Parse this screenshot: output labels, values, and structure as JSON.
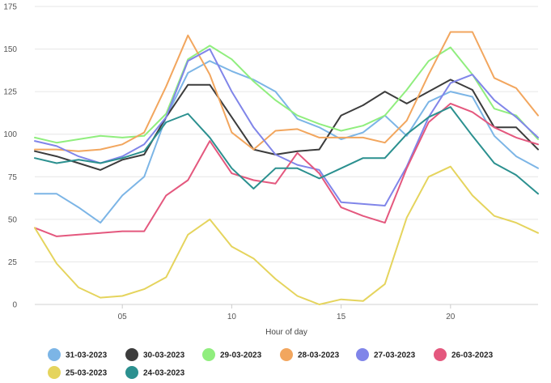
{
  "chart_data": {
    "type": "line",
    "xlabel": "Hour of day",
    "ylabel": "",
    "xlim": [
      1,
      24
    ],
    "ylim": [
      0,
      175
    ],
    "x_ticks": [
      5,
      10,
      15,
      20
    ],
    "x_tick_labels": [
      "05",
      "10",
      "15",
      "20"
    ],
    "y_ticks": [
      0,
      25,
      50,
      75,
      100,
      125,
      150,
      175
    ],
    "grid": "horizontal",
    "legend_position": "bottom",
    "x": [
      1,
      2,
      3,
      4,
      5,
      6,
      7,
      8,
      9,
      10,
      11,
      12,
      13,
      14,
      15,
      16,
      17,
      18,
      19,
      20,
      21,
      22,
      23,
      24
    ],
    "series": [
      {
        "name": "31-03-2023",
        "color": "#7cb5e6",
        "values": [
          65,
          65,
          57,
          48,
          64,
          75,
          110,
          136,
          143,
          137,
          132,
          125,
          109,
          104,
          97,
          101,
          111,
          99,
          119,
          125,
          122,
          99,
          87,
          80
        ]
      },
      {
        "name": "30-03-2023",
        "color": "#3c3c3c",
        "values": [
          90,
          87,
          83,
          79,
          85,
          88,
          110,
          129,
          129,
          110,
          91,
          88,
          90,
          91,
          111,
          117,
          125,
          118,
          125,
          132,
          126,
          104,
          104,
          91
        ]
      },
      {
        "name": "29-03-2023",
        "color": "#90ee7e",
        "values": [
          98,
          95,
          97,
          99,
          98,
          99,
          112,
          144,
          152,
          144,
          131,
          120,
          111,
          106,
          102,
          105,
          111,
          126,
          143,
          151,
          135,
          115,
          111,
          97
        ]
      },
      {
        "name": "28-03-2023",
        "color": "#f2a65e",
        "values": [
          91,
          91,
          90,
          91,
          94,
          101,
          128,
          158,
          135,
          101,
          91,
          102,
          103,
          98,
          98,
          98,
          95,
          108,
          135,
          160,
          160,
          133,
          127,
          111
        ]
      },
      {
        "name": "27-03-2023",
        "color": "#8085e9",
        "values": [
          96,
          93,
          87,
          83,
          87,
          94,
          110,
          143,
          150,
          125,
          104,
          88,
          82,
          79,
          60,
          59,
          58,
          81,
          110,
          130,
          135,
          120,
          110,
          98
        ]
      },
      {
        "name": "26-03-2023",
        "color": "#e4587e",
        "values": [
          45,
          40,
          41,
          42,
          43,
          43,
          64,
          73,
          96,
          77,
          73,
          71,
          89,
          77,
          57,
          52,
          48,
          80,
          107,
          118,
          113,
          104,
          98,
          94
        ]
      },
      {
        "name": "25-03-2023",
        "color": "#e5d45d",
        "values": [
          45,
          24,
          10,
          4,
          5,
          9,
          16,
          41,
          50,
          34,
          27,
          15,
          5,
          0,
          3,
          2,
          12,
          51,
          75,
          81,
          64,
          52,
          48,
          42
        ]
      },
      {
        "name": "24-03-2023",
        "color": "#2b908f",
        "values": [
          86,
          83,
          85,
          83,
          86,
          90,
          107,
          112,
          98,
          80,
          68,
          80,
          80,
          74,
          80,
          86,
          86,
          100,
          110,
          116,
          99,
          83,
          76,
          65
        ]
      }
    ]
  }
}
